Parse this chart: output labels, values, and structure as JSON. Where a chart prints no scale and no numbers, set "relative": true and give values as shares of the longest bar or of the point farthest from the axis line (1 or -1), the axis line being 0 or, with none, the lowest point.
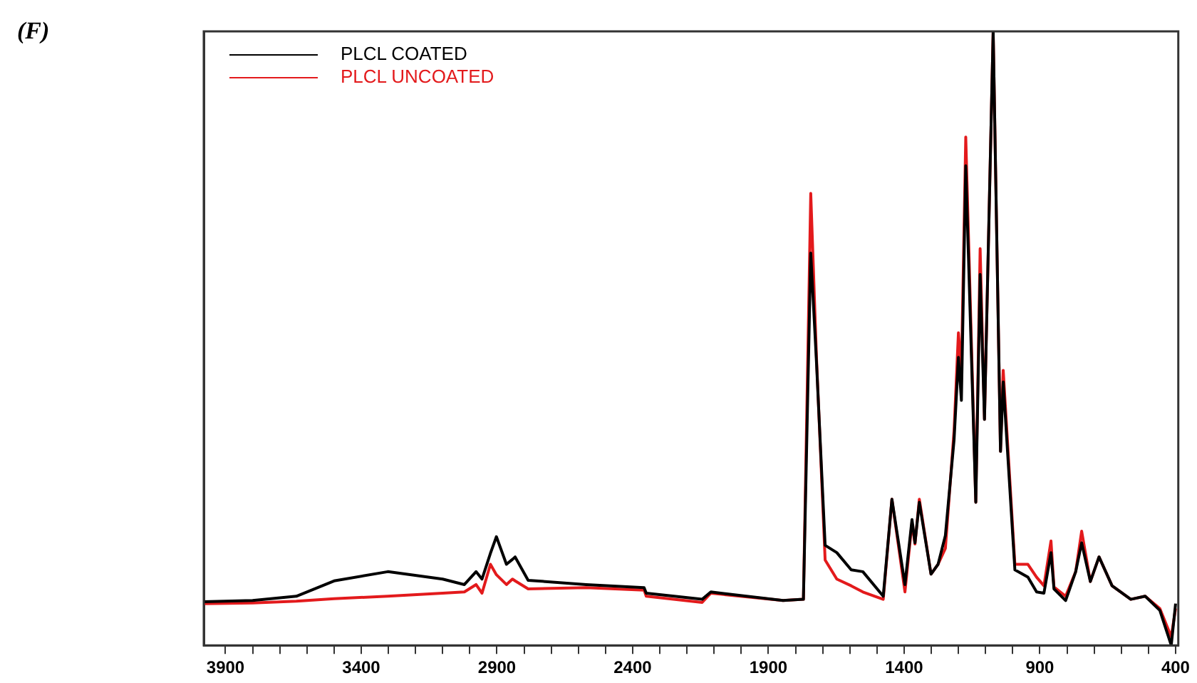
{
  "chart_data": {
    "type": "line",
    "title": "(F)",
    "relative": true,
    "legend": "top left",
    "marker": "none",
    "line_style": "solid",
    "grid": false,
    "xlim": [
      3980,
      390
    ],
    "xticks": [
      3900,
      {
        "value": 3800,
        "label": null
      },
      {
        "value": 3700,
        "label": null
      },
      {
        "value": 3600,
        "label": null
      },
      {
        "value": 3500,
        "label": null
      },
      3400,
      {
        "value": 3300,
        "label": null
      },
      {
        "value": 3200,
        "label": null
      },
      {
        "value": 3100,
        "label": null
      },
      {
        "value": 3000,
        "label": null
      },
      2900,
      {
        "value": 2800,
        "label": null
      },
      {
        "value": 2700,
        "label": null
      },
      {
        "value": 2600,
        "label": null
      },
      {
        "value": 2500,
        "label": null
      },
      2400,
      {
        "value": 2300,
        "label": null
      },
      {
        "value": 2200,
        "label": null
      },
      {
        "value": 2100,
        "label": null
      },
      {
        "value": 2000,
        "label": null
      },
      1900,
      {
        "value": 1800,
        "label": null
      },
      {
        "value": 1700,
        "label": null
      },
      {
        "value": 1600,
        "label": null
      },
      {
        "value": 1500,
        "label": null
      },
      1400,
      {
        "value": 1300,
        "label": null
      },
      {
        "value": 1200,
        "label": null
      },
      {
        "value": 1100,
        "label": null
      },
      {
        "value": 1000,
        "label": null
      },
      900,
      {
        "value": 800,
        "label": null
      },
      {
        "value": 700,
        "label": null
      },
      {
        "value": 600,
        "label": null
      },
      {
        "value": 500,
        "label": null
      },
      400
    ],
    "x": [
      3980,
      3800,
      3639,
      3500,
      3302,
      3100,
      3020,
      2977,
      2955,
      2924,
      2902,
      2865,
      2843,
      2833,
      2785,
      2571,
      2358,
      2350,
      2144,
      2112,
      1846,
      1771,
      1744,
      1723,
      1691,
      1648,
      1595,
      1552,
      1477,
      1445,
      1397,
      1371,
      1360,
      1344,
      1301,
      1275,
      1248,
      1216,
      1200,
      1189,
      1173,
      1136,
      1120,
      1104,
      1072,
      1045,
      1035,
      992,
      944,
      912,
      885,
      859,
      848,
      805,
      768,
      746,
      714,
      682,
      634,
      565,
      512,
      458,
      416,
      400
    ],
    "series": [
      {
        "name": "PLCL COATED",
        "color": "#000000",
        "values": [
          0.071,
          0.073,
          0.08,
          0.105,
          0.12,
          0.108,
          0.099,
          0.12,
          0.108,
          0.15,
          0.177,
          0.132,
          0.14,
          0.144,
          0.106,
          0.099,
          0.094,
          0.085,
          0.075,
          0.087,
          0.073,
          0.075,
          0.639,
          0.462,
          0.163,
          0.151,
          0.123,
          0.12,
          0.08,
          0.238,
          0.099,
          0.205,
          0.167,
          0.233,
          0.116,
          0.132,
          0.179,
          0.335,
          0.469,
          0.399,
          0.781,
          0.233,
          0.604,
          0.368,
          1.0,
          0.316,
          0.429,
          0.123,
          0.111,
          0.087,
          0.085,
          0.151,
          0.092,
          0.073,
          0.12,
          0.167,
          0.104,
          0.144,
          0.097,
          0.075,
          0.08,
          0.057,
          0.0,
          0.068
        ]
      },
      {
        "name": "PLCL UNCOATED",
        "color": "#e31a1c",
        "values": [
          0.068,
          0.069,
          0.072,
          0.076,
          0.08,
          0.085,
          0.087,
          0.099,
          0.085,
          0.132,
          0.115,
          0.099,
          0.108,
          0.105,
          0.092,
          0.094,
          0.09,
          0.08,
          0.07,
          0.085,
          0.073,
          0.075,
          0.736,
          0.47,
          0.139,
          0.108,
          0.097,
          0.087,
          0.075,
          0.238,
          0.087,
          0.2,
          0.165,
          0.238,
          0.116,
          0.132,
          0.158,
          0.35,
          0.509,
          0.446,
          0.828,
          0.233,
          0.646,
          0.368,
          1.0,
          0.316,
          0.448,
          0.132,
          0.132,
          0.111,
          0.097,
          0.17,
          0.095,
          0.08,
          0.12,
          0.186,
          0.104,
          0.144,
          0.097,
          0.075,
          0.08,
          0.06,
          0.014,
          0.06
        ]
      }
    ]
  }
}
